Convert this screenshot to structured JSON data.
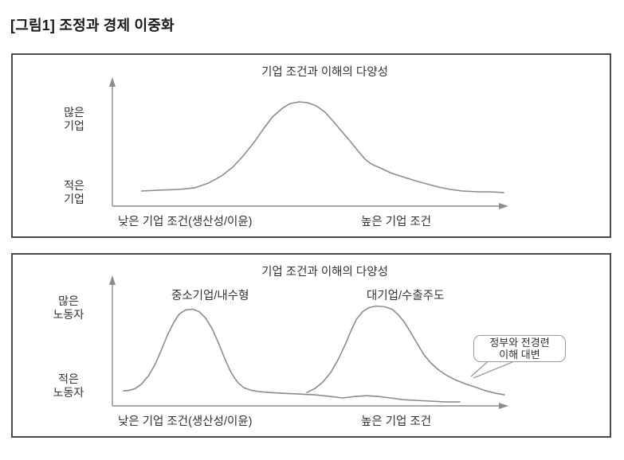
{
  "page": {
    "title": "[그림1] 조정과 경제 이중화"
  },
  "colors": {
    "curve": "#8c8c8c",
    "axis": "#8c8c8c",
    "panel_border": "#4a4a4a",
    "text": "#222222"
  },
  "chart_data": [
    {
      "type": "line",
      "title": "기업 조건과 이해의 다양성",
      "ylabel_top": "많은\n기업",
      "ylabel_bottom": "적은\n기업",
      "xlabel_left": "낮은 기업 조건(생산성/이윤)",
      "xlabel_right": "높은 기업 조건",
      "xlim": [
        0,
        100
      ],
      "ylim": [
        0,
        100
      ],
      "grid": false,
      "legend": "none",
      "series": [
        {
          "name": "",
          "points": [
            [
              7.4,
              12.0
            ],
            [
              11.9,
              12.7
            ],
            [
              16.9,
              13.3
            ],
            [
              20.9,
              14.6
            ],
            [
              24.3,
              18.4
            ],
            [
              27.6,
              24.1
            ],
            [
              30.4,
              31.0
            ],
            [
              33.0,
              39.9
            ],
            [
              35.6,
              50.0
            ],
            [
              38.0,
              60.8
            ],
            [
              40.4,
              70.9
            ],
            [
              42.9,
              77.8
            ],
            [
              44.9,
              81.6
            ],
            [
              47.1,
              82.9
            ],
            [
              49.3,
              82.3
            ],
            [
              51.5,
              79.7
            ],
            [
              53.7,
              74.7
            ],
            [
              55.7,
              67.7
            ],
            [
              57.7,
              60.1
            ],
            [
              59.8,
              52.5
            ],
            [
              61.4,
              46.2
            ],
            [
              62.6,
              41.8
            ],
            [
              63.8,
              37.3
            ],
            [
              65.4,
              33.5
            ],
            [
              67.6,
              30.4
            ],
            [
              70.2,
              26.6
            ],
            [
              73.2,
              23.4
            ],
            [
              76.3,
              20.3
            ],
            [
              79.3,
              17.7
            ],
            [
              82.3,
              15.2
            ],
            [
              85.3,
              13.3
            ],
            [
              88.3,
              12.0
            ],
            [
              92.4,
              11.4
            ],
            [
              95.4,
              11.4
            ],
            [
              98.8,
              10.8
            ]
          ]
        }
      ]
    },
    {
      "type": "line",
      "title": "기업 조건과 이해의 다양성",
      "ylabel_top": "많은\n노동자",
      "ylabel_bottom": "적은\n노동자",
      "xlabel_left": "낮은 기업 조건(생산성/이윤)",
      "xlabel_right": "높은 기업 조건",
      "xlim": [
        0,
        100
      ],
      "ylim": [
        0,
        100
      ],
      "grid": false,
      "legend": "none",
      "annotation": {
        "text": "정부와 전경련\n이해 대변"
      },
      "series": [
        {
          "name": "중소기업/내수형",
          "points": [
            [
              2.8,
              11.9
            ],
            [
              4.4,
              12.5
            ],
            [
              5.8,
              13.8
            ],
            [
              7.4,
              17.5
            ],
            [
              9.1,
              23.8
            ],
            [
              10.7,
              32.5
            ],
            [
              12.3,
              43.8
            ],
            [
              13.9,
              56.3
            ],
            [
              15.5,
              66.3
            ],
            [
              16.9,
              73.1
            ],
            [
              18.5,
              76.3
            ],
            [
              20.3,
              76.9
            ],
            [
              21.9,
              75.0
            ],
            [
              23.5,
              70.0
            ],
            [
              25.2,
              61.3
            ],
            [
              26.8,
              50.0
            ],
            [
              28.4,
              37.5
            ],
            [
              30.0,
              26.3
            ],
            [
              31.6,
              18.8
            ],
            [
              33.2,
              14.4
            ],
            [
              35.0,
              12.5
            ],
            [
              37.0,
              11.3
            ],
            [
              40.0,
              10.6
            ],
            [
              43.1,
              10.0
            ],
            [
              47.1,
              9.4
            ],
            [
              51.1,
              8.8
            ],
            [
              55.1,
              7.5
            ],
            [
              58.1,
              6.3
            ],
            [
              61.2,
              7.5
            ],
            [
              64.2,
              8.1
            ],
            [
              67.2,
              7.5
            ],
            [
              70.2,
              6.3
            ],
            [
              73.2,
              5.0
            ],
            [
              76.3,
              4.4
            ],
            [
              80.3,
              3.8
            ],
            [
              84.3,
              3.1
            ],
            [
              87.7,
              3.1
            ]
          ]
        },
        {
          "name": "대기업/수출주도",
          "points": [
            [
              49.1,
              10.6
            ],
            [
              51.1,
              13.8
            ],
            [
              53.1,
              18.8
            ],
            [
              55.1,
              26.3
            ],
            [
              57.1,
              37.5
            ],
            [
              58.8,
              48.8
            ],
            [
              60.2,
              59.4
            ],
            [
              61.6,
              68.8
            ],
            [
              63.2,
              75.0
            ],
            [
              64.8,
              78.1
            ],
            [
              66.6,
              79.4
            ],
            [
              68.8,
              78.8
            ],
            [
              70.6,
              76.9
            ],
            [
              72.2,
              72.5
            ],
            [
              73.8,
              66.3
            ],
            [
              75.5,
              57.5
            ],
            [
              77.1,
              48.8
            ],
            [
              78.7,
              40.6
            ],
            [
              80.5,
              33.8
            ],
            [
              82.3,
              28.8
            ],
            [
              84.3,
              24.4
            ],
            [
              86.7,
              20.6
            ],
            [
              89.1,
              17.5
            ],
            [
              91.5,
              15.0
            ],
            [
              94.4,
              11.9
            ],
            [
              96.8,
              10.0
            ],
            [
              99.0,
              8.8
            ]
          ]
        }
      ]
    }
  ]
}
